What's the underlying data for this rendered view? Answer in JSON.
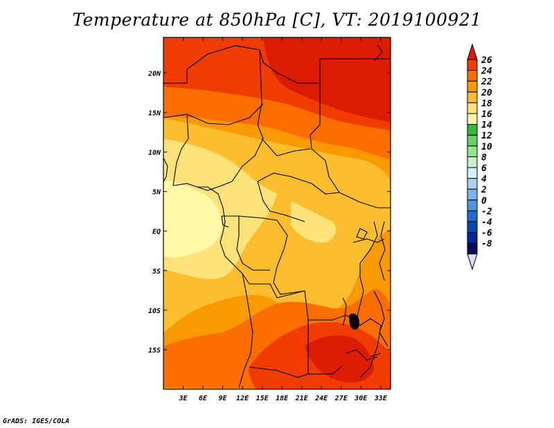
{
  "title": "Temperature at 850hPa [C], VT: 2019100921",
  "credit": "GrADS: IGES/COLA",
  "map": {
    "lon_labels": [
      "3E",
      "6E",
      "9E",
      "12E",
      "15E",
      "18E",
      "21E",
      "24E",
      "27E",
      "30E",
      "33E"
    ],
    "lat_labels": [
      "20N",
      "15N",
      "10N",
      "5N",
      "EQ",
      "5S",
      "10S",
      "15S"
    ],
    "lon_range": [
      0,
      34.5
    ],
    "lat_range": [
      -20,
      24.5
    ],
    "variable_units": "C"
  },
  "colorbar": {
    "labels": [
      "26",
      "24",
      "22",
      "20",
      "18",
      "16",
      "14",
      "12",
      "10",
      "8",
      "6",
      "4",
      "2",
      "0",
      "-2",
      "-4",
      "-6",
      "-8"
    ],
    "colors": [
      "#dc1c00",
      "#f03c00",
      "#fa6e00",
      "#fa9a00",
      "#fcbe2e",
      "#fee27a",
      "#fefaa8",
      "#37b937",
      "#64d264",
      "#91e691",
      "#c8f0c8",
      "#d2f0fa",
      "#a5d2f5",
      "#78b4f0",
      "#4b96e6",
      "#1e6ed2",
      "#0a46b4",
      "#002896",
      "#0a0a5a",
      "#dcdcf0"
    ]
  }
}
